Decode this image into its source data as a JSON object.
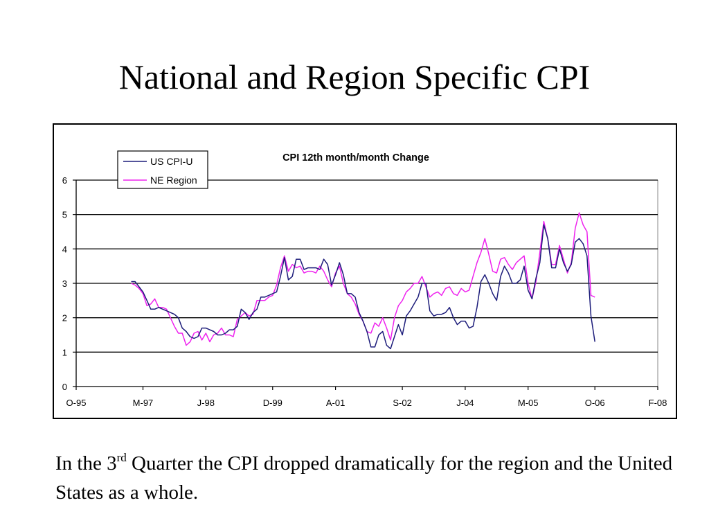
{
  "slide": {
    "title": "National and Region Specific CPI",
    "caption": {
      "part1": "In the 3",
      "superscript": "rd",
      "part2": " Quarter the CPI dropped dramatically for the region and the United States as a whole."
    }
  },
  "chart_data": {
    "type": "line",
    "title": "CPI 12th month/month Change",
    "xlabel": "",
    "ylabel": "",
    "x_type": "date",
    "xlim": [
      "1995-10",
      "2008-02"
    ],
    "ylim": [
      0,
      6
    ],
    "yticks": [
      0,
      1,
      2,
      3,
      4,
      5,
      6
    ],
    "xticks": [
      {
        "date": "1995-10",
        "label": "O-95"
      },
      {
        "date": "1997-03",
        "label": "M-97"
      },
      {
        "date": "1998-07",
        "label": "J-98"
      },
      {
        "date": "1999-12",
        "label": "D-99"
      },
      {
        "date": "2001-04",
        "label": "A-01"
      },
      {
        "date": "2002-09",
        "label": "S-02"
      },
      {
        "date": "2004-01",
        "label": "J-04"
      },
      {
        "date": "2005-05",
        "label": "M-05"
      },
      {
        "date": "2006-10",
        "label": "O-06"
      },
      {
        "date": "2008-02",
        "label": "F-08"
      }
    ],
    "grid": true,
    "legend_position": "top-left",
    "series": [
      {
        "name": "US CPI-U",
        "color": "#1c1c7a",
        "points": [
          [
            "1996-12",
            3.05
          ],
          [
            "1997-01",
            3.05
          ],
          [
            "1997-02",
            2.9
          ],
          [
            "1997-03",
            2.75
          ],
          [
            "1997-04",
            2.5
          ],
          [
            "1997-05",
            2.25
          ],
          [
            "1997-06",
            2.25
          ],
          [
            "1997-07",
            2.3
          ],
          [
            "1997-08",
            2.25
          ],
          [
            "1997-09",
            2.2
          ],
          [
            "1997-10",
            2.15
          ],
          [
            "1997-11",
            2.1
          ],
          [
            "1997-12",
            2.0
          ],
          [
            "1998-01",
            1.7
          ],
          [
            "1998-02",
            1.6
          ],
          [
            "1998-03",
            1.45
          ],
          [
            "1998-04",
            1.4
          ],
          [
            "1998-05",
            1.45
          ],
          [
            "1998-06",
            1.7
          ],
          [
            "1998-07",
            1.7
          ],
          [
            "1998-08",
            1.65
          ],
          [
            "1998-09",
            1.6
          ],
          [
            "1998-10",
            1.5
          ],
          [
            "1998-11",
            1.5
          ],
          [
            "1998-12",
            1.55
          ],
          [
            "1999-01",
            1.65
          ],
          [
            "1999-02",
            1.65
          ],
          [
            "1999-03",
            1.75
          ],
          [
            "1999-04",
            2.25
          ],
          [
            "1999-05",
            2.15
          ],
          [
            "1999-06",
            1.95
          ],
          [
            "1999-07",
            2.15
          ],
          [
            "1999-08",
            2.25
          ],
          [
            "1999-09",
            2.6
          ],
          [
            "1999-10",
            2.6
          ],
          [
            "1999-11",
            2.65
          ],
          [
            "1999-12",
            2.7
          ],
          [
            "2000-01",
            2.75
          ],
          [
            "2000-02",
            3.2
          ],
          [
            "2000-03",
            3.75
          ],
          [
            "2000-04",
            3.1
          ],
          [
            "2000-05",
            3.2
          ],
          [
            "2000-06",
            3.7
          ],
          [
            "2000-07",
            3.7
          ],
          [
            "2000-08",
            3.4
          ],
          [
            "2000-09",
            3.45
          ],
          [
            "2000-10",
            3.45
          ],
          [
            "2000-11",
            3.45
          ],
          [
            "2000-12",
            3.4
          ],
          [
            "2001-01",
            3.7
          ],
          [
            "2001-02",
            3.55
          ],
          [
            "2001-03",
            2.95
          ],
          [
            "2001-04",
            3.25
          ],
          [
            "2001-05",
            3.6
          ],
          [
            "2001-06",
            3.25
          ],
          [
            "2001-07",
            2.7
          ],
          [
            "2001-08",
            2.7
          ],
          [
            "2001-09",
            2.6
          ],
          [
            "2001-10",
            2.15
          ],
          [
            "2001-11",
            1.9
          ],
          [
            "2001-12",
            1.6
          ],
          [
            "2002-01",
            1.15
          ],
          [
            "2002-02",
            1.15
          ],
          [
            "2002-03",
            1.5
          ],
          [
            "2002-04",
            1.6
          ],
          [
            "2002-05",
            1.2
          ],
          [
            "2002-06",
            1.1
          ],
          [
            "2002-07",
            1.45
          ],
          [
            "2002-08",
            1.8
          ],
          [
            "2002-09",
            1.5
          ],
          [
            "2002-10",
            2.05
          ],
          [
            "2002-11",
            2.2
          ],
          [
            "2002-12",
            2.4
          ],
          [
            "2003-01",
            2.6
          ],
          [
            "2003-02",
            3.0
          ],
          [
            "2003-03",
            3.0
          ],
          [
            "2003-04",
            2.2
          ],
          [
            "2003-05",
            2.05
          ],
          [
            "2003-06",
            2.1
          ],
          [
            "2003-07",
            2.1
          ],
          [
            "2003-08",
            2.15
          ],
          [
            "2003-09",
            2.3
          ],
          [
            "2003-10",
            2.0
          ],
          [
            "2003-11",
            1.8
          ],
          [
            "2003-12",
            1.9
          ],
          [
            "2004-01",
            1.9
          ],
          [
            "2004-02",
            1.7
          ],
          [
            "2004-03",
            1.75
          ],
          [
            "2004-04",
            2.3
          ],
          [
            "2004-05",
            3.05
          ],
          [
            "2004-06",
            3.25
          ],
          [
            "2004-07",
            3.0
          ],
          [
            "2004-08",
            2.7
          ],
          [
            "2004-09",
            2.5
          ],
          [
            "2004-10",
            3.2
          ],
          [
            "2004-11",
            3.5
          ],
          [
            "2004-12",
            3.3
          ],
          [
            "2005-01",
            3.0
          ],
          [
            "2005-02",
            3.0
          ],
          [
            "2005-03",
            3.1
          ],
          [
            "2005-04",
            3.5
          ],
          [
            "2005-05",
            2.8
          ],
          [
            "2005-06",
            2.55
          ],
          [
            "2005-07",
            3.15
          ],
          [
            "2005-08",
            3.6
          ],
          [
            "2005-09",
            4.7
          ],
          [
            "2005-10",
            4.3
          ],
          [
            "2005-11",
            3.45
          ],
          [
            "2005-12",
            3.45
          ],
          [
            "2006-01",
            4.0
          ],
          [
            "2006-02",
            3.6
          ],
          [
            "2006-03",
            3.35
          ],
          [
            "2006-04",
            3.55
          ],
          [
            "2006-05",
            4.2
          ],
          [
            "2006-06",
            4.3
          ],
          [
            "2006-07",
            4.15
          ],
          [
            "2006-08",
            3.8
          ],
          [
            "2006-09",
            2.05
          ],
          [
            "2006-10",
            1.3
          ]
        ]
      },
      {
        "name": "NE Region",
        "color": "#ee22ee",
        "points": [
          [
            "1996-12",
            3.0
          ],
          [
            "1997-01",
            2.95
          ],
          [
            "1997-02",
            2.85
          ],
          [
            "1997-03",
            2.7
          ],
          [
            "1997-04",
            2.35
          ],
          [
            "1997-05",
            2.4
          ],
          [
            "1997-06",
            2.55
          ],
          [
            "1997-07",
            2.3
          ],
          [
            "1997-08",
            2.3
          ],
          [
            "1997-09",
            2.25
          ],
          [
            "1997-10",
            2.0
          ],
          [
            "1997-11",
            1.75
          ],
          [
            "1997-12",
            1.55
          ],
          [
            "1998-01",
            1.55
          ],
          [
            "1998-02",
            1.2
          ],
          [
            "1998-03",
            1.3
          ],
          [
            "1998-04",
            1.55
          ],
          [
            "1998-05",
            1.6
          ],
          [
            "1998-06",
            1.35
          ],
          [
            "1998-07",
            1.55
          ],
          [
            "1998-08",
            1.3
          ],
          [
            "1998-09",
            1.5
          ],
          [
            "1998-10",
            1.55
          ],
          [
            "1998-11",
            1.7
          ],
          [
            "1998-12",
            1.5
          ],
          [
            "1999-01",
            1.5
          ],
          [
            "1999-02",
            1.45
          ],
          [
            "1999-03",
            1.95
          ],
          [
            "1999-04",
            2.05
          ],
          [
            "1999-05",
            2.15
          ],
          [
            "1999-06",
            2.05
          ],
          [
            "1999-07",
            2.1
          ],
          [
            "1999-08",
            2.5
          ],
          [
            "1999-09",
            2.5
          ],
          [
            "1999-10",
            2.5
          ],
          [
            "1999-11",
            2.6
          ],
          [
            "1999-12",
            2.65
          ],
          [
            "2000-01",
            2.95
          ],
          [
            "2000-02",
            3.45
          ],
          [
            "2000-03",
            3.8
          ],
          [
            "2000-04",
            3.35
          ],
          [
            "2000-05",
            3.55
          ],
          [
            "2000-06",
            3.45
          ],
          [
            "2000-07",
            3.5
          ],
          [
            "2000-08",
            3.3
          ],
          [
            "2000-09",
            3.35
          ],
          [
            "2000-10",
            3.35
          ],
          [
            "2000-11",
            3.3
          ],
          [
            "2000-12",
            3.5
          ],
          [
            "2001-01",
            3.35
          ],
          [
            "2001-02",
            3.1
          ],
          [
            "2001-03",
            2.9
          ],
          [
            "2001-04",
            3.3
          ],
          [
            "2001-05",
            3.5
          ],
          [
            "2001-06",
            3.0
          ],
          [
            "2001-07",
            2.7
          ],
          [
            "2001-08",
            2.6
          ],
          [
            "2001-09",
            2.4
          ],
          [
            "2001-10",
            2.1
          ],
          [
            "2001-11",
            1.9
          ],
          [
            "2001-12",
            1.6
          ],
          [
            "2002-01",
            1.55
          ],
          [
            "2002-02",
            1.85
          ],
          [
            "2002-03",
            1.75
          ],
          [
            "2002-04",
            2.0
          ],
          [
            "2002-05",
            1.7
          ],
          [
            "2002-06",
            1.35
          ],
          [
            "2002-07",
            2.0
          ],
          [
            "2002-08",
            2.35
          ],
          [
            "2002-09",
            2.5
          ],
          [
            "2002-10",
            2.75
          ],
          [
            "2002-11",
            2.85
          ],
          [
            "2002-12",
            3.0
          ],
          [
            "2003-01",
            3.0
          ],
          [
            "2003-02",
            3.2
          ],
          [
            "2003-03",
            2.9
          ],
          [
            "2003-04",
            2.6
          ],
          [
            "2003-05",
            2.7
          ],
          [
            "2003-06",
            2.75
          ],
          [
            "2003-07",
            2.65
          ],
          [
            "2003-08",
            2.85
          ],
          [
            "2003-09",
            2.9
          ],
          [
            "2003-10",
            2.7
          ],
          [
            "2003-11",
            2.65
          ],
          [
            "2003-12",
            2.85
          ],
          [
            "2004-01",
            2.75
          ],
          [
            "2004-02",
            2.8
          ],
          [
            "2004-03",
            3.2
          ],
          [
            "2004-04",
            3.6
          ],
          [
            "2004-05",
            3.9
          ],
          [
            "2004-06",
            4.3
          ],
          [
            "2004-07",
            3.85
          ],
          [
            "2004-08",
            3.35
          ],
          [
            "2004-09",
            3.3
          ],
          [
            "2004-10",
            3.7
          ],
          [
            "2004-11",
            3.75
          ],
          [
            "2004-12",
            3.55
          ],
          [
            "2005-01",
            3.4
          ],
          [
            "2005-02",
            3.6
          ],
          [
            "2005-03",
            3.7
          ],
          [
            "2005-04",
            3.8
          ],
          [
            "2005-05",
            3.0
          ],
          [
            "2005-06",
            2.55
          ],
          [
            "2005-07",
            3.05
          ],
          [
            "2005-08",
            3.9
          ],
          [
            "2005-09",
            4.8
          ],
          [
            "2005-10",
            4.3
          ],
          [
            "2005-11",
            3.55
          ],
          [
            "2005-12",
            3.55
          ],
          [
            "2006-01",
            4.1
          ],
          [
            "2006-02",
            3.7
          ],
          [
            "2006-03",
            3.3
          ],
          [
            "2006-04",
            3.6
          ],
          [
            "2006-05",
            4.6
          ],
          [
            "2006-06",
            5.05
          ],
          [
            "2006-07",
            4.7
          ],
          [
            "2006-08",
            4.5
          ],
          [
            "2006-09",
            2.65
          ],
          [
            "2006-10",
            2.6
          ]
        ]
      }
    ]
  }
}
